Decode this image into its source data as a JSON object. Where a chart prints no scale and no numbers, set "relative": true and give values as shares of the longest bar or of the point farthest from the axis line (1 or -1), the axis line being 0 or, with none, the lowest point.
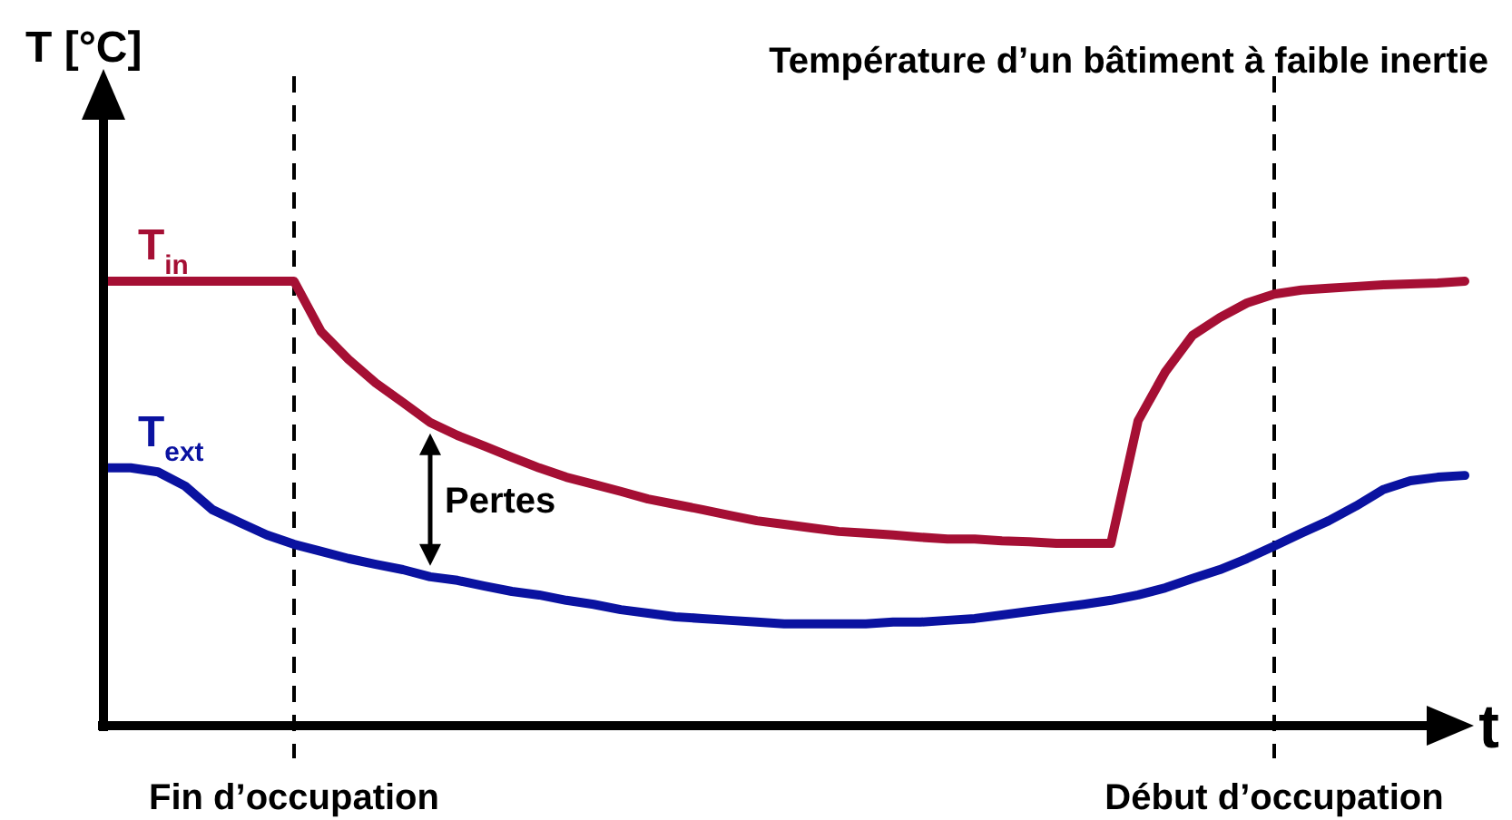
{
  "chart_data": {
    "type": "line",
    "title": "Température d’un bâtiment à faible inertie",
    "xlabel": "t",
    "ylabel": "T [°C]",
    "relative": true,
    "categories": [
      null,
      null,
      null,
      null,
      null,
      null,
      null,
      "Fin d’occupation",
      null,
      null,
      null,
      null,
      null,
      null,
      null,
      null,
      null,
      null,
      null,
      null,
      null,
      null,
      null,
      null,
      null,
      null,
      null,
      null,
      null,
      null,
      null,
      null,
      null,
      null,
      null,
      null,
      null,
      null,
      null,
      null,
      null,
      null,
      null,
      "Début d’occupation",
      null,
      null,
      null,
      null,
      null,
      null,
      null
    ],
    "series": [
      {
        "name": "T$_{in}$",
        "color": "#a50f34",
        "values": [
          1,
          1,
          1,
          1,
          1,
          1,
          1,
          1,
          0.886,
          0.824,
          0.771,
          0.727,
          0.682,
          0.653,
          0.629,
          0.604,
          0.58,
          0.559,
          0.543,
          0.527,
          0.51,
          0.498,
          0.486,
          0.473,
          0.461,
          0.453,
          0.445,
          0.437,
          0.433,
          0.429,
          0.424,
          0.42,
          0.42,
          0.416,
          0.414,
          0.41,
          0.41,
          0.41,
          0.686,
          0.796,
          0.878,
          0.918,
          0.951,
          0.971,
          0.98,
          0.984,
          0.988,
          0.992,
          0.994,
          0.996,
          1
        ]
      },
      {
        "name": "T$_{ext}$",
        "color": "#0a12a0",
        "values": [
          0.58,
          0.58,
          0.571,
          0.539,
          0.486,
          0.457,
          0.429,
          0.408,
          0.392,
          0.376,
          0.363,
          0.351,
          0.335,
          0.327,
          0.314,
          0.302,
          0.294,
          0.282,
          0.273,
          0.261,
          0.253,
          0.245,
          0.241,
          0.237,
          0.233,
          0.229,
          0.229,
          0.229,
          0.229,
          0.233,
          0.233,
          0.237,
          0.241,
          0.249,
          0.257,
          0.265,
          0.273,
          0.282,
          0.294,
          0.31,
          0.331,
          0.351,
          0.376,
          0.404,
          0.433,
          0.461,
          0.494,
          0.531,
          0.551,
          0.559,
          0.563
        ]
      }
    ],
    "ref_lines": [
      {
        "axis": "x",
        "value": "Fin d’occupation",
        "line_style": "dashed",
        "color": "#000000"
      },
      {
        "axis": "x",
        "value": "Début d’occupation",
        "line_style": "dashed",
        "color": "#000000"
      }
    ],
    "annotations": [
      "Pertes"
    ]
  }
}
